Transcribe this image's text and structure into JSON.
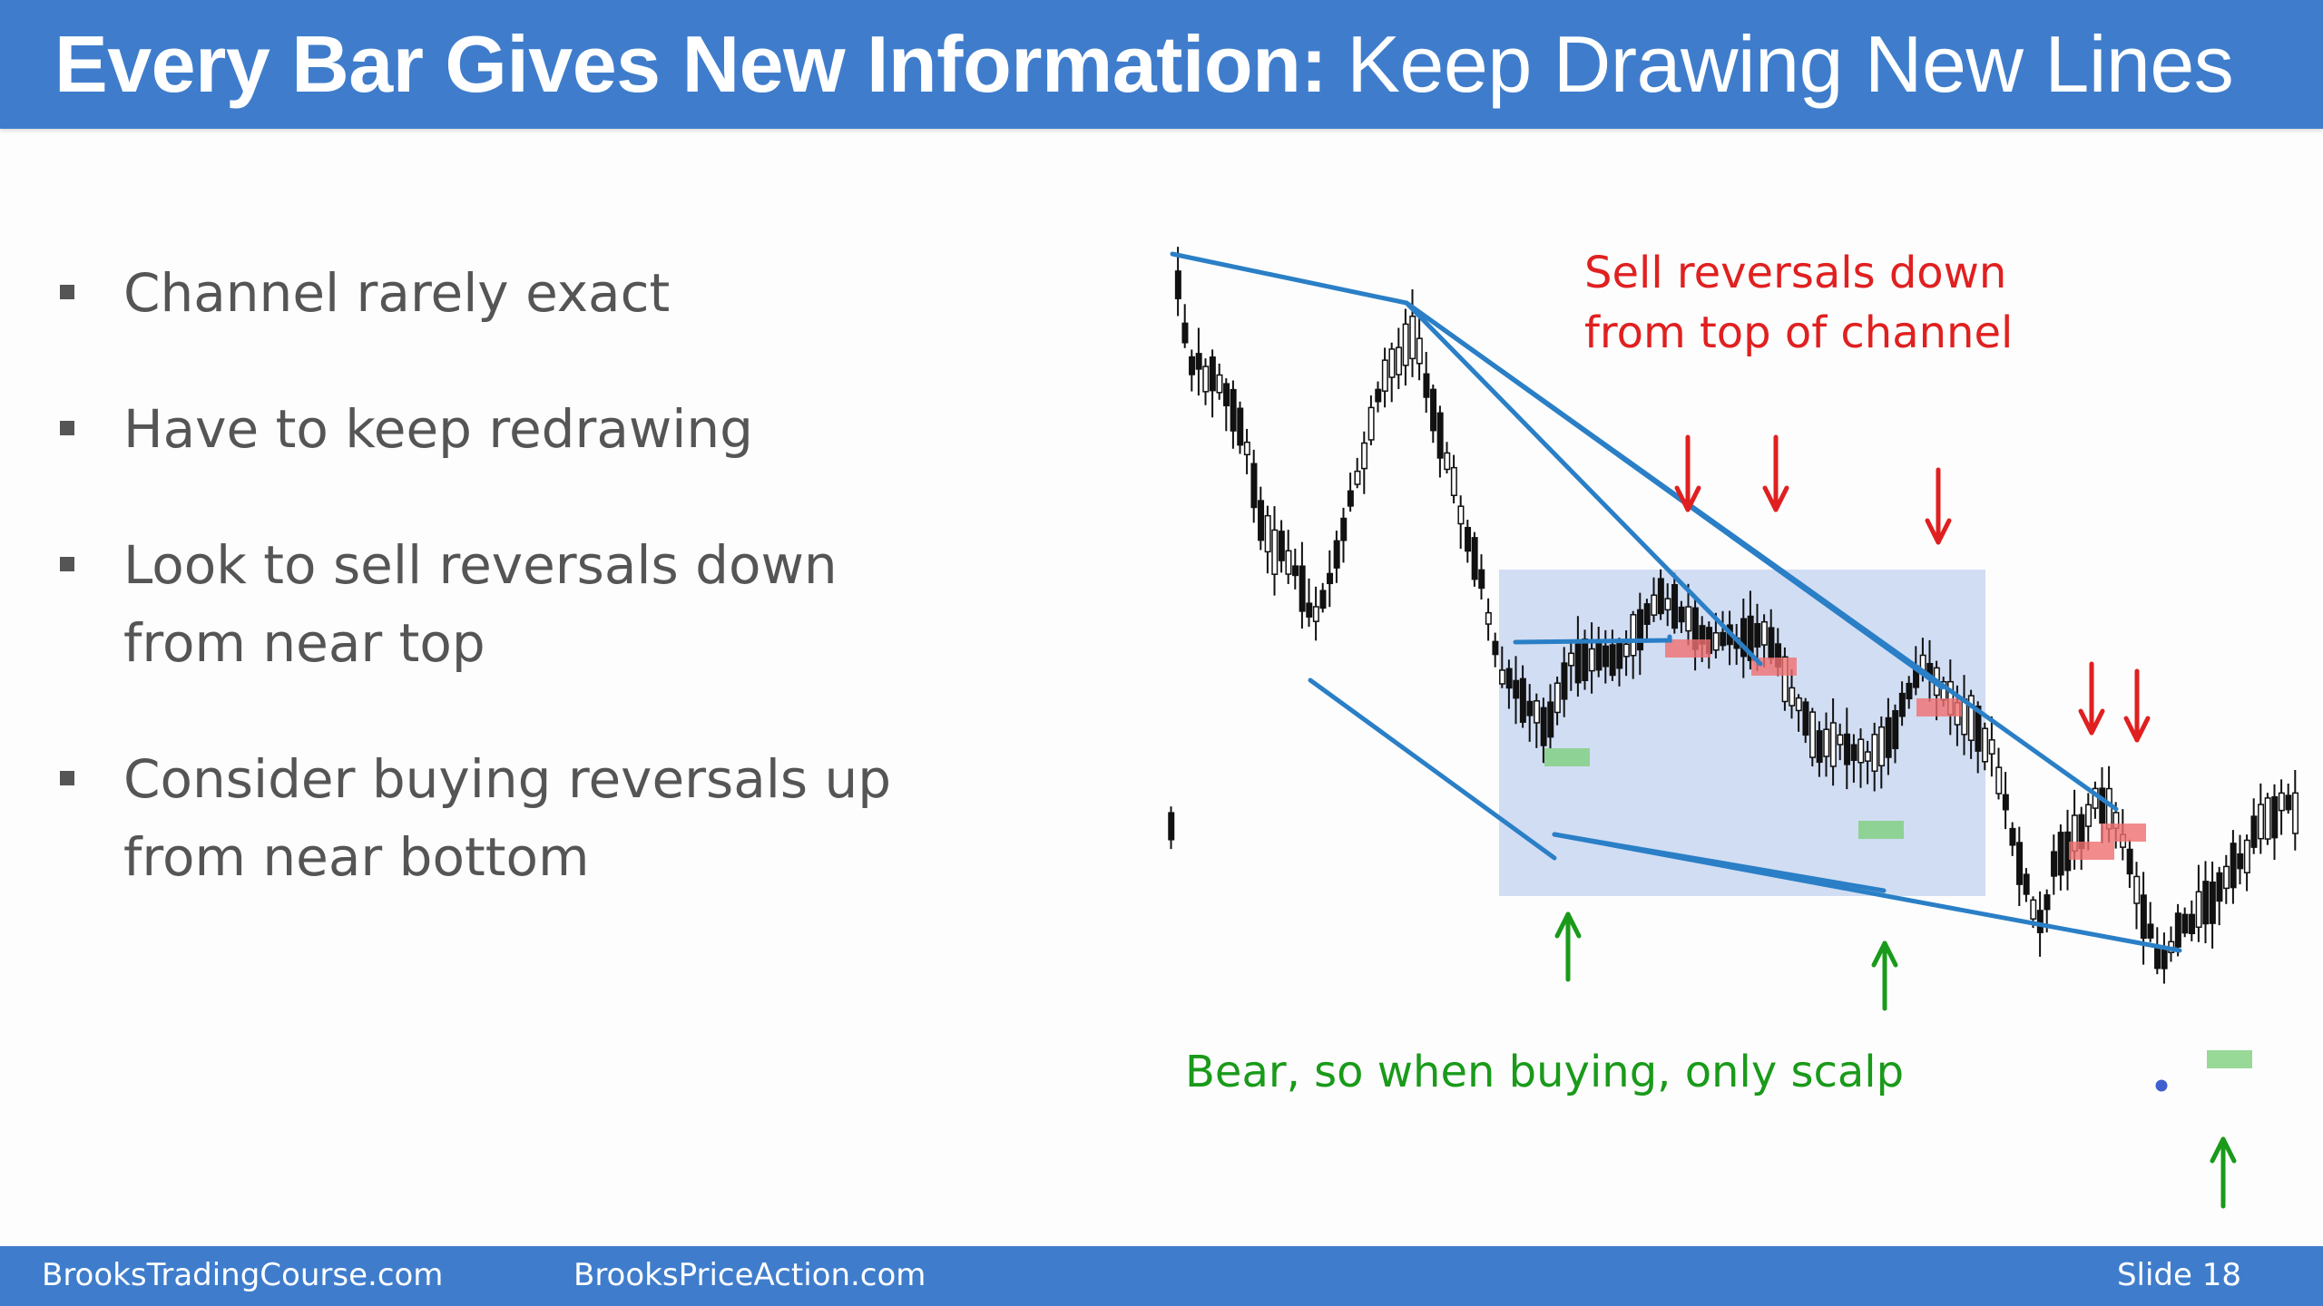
{
  "slide": {
    "title_bold": "Every Bar Gives New Information:",
    "title_rest": "Keep Drawing New Lines",
    "bullets": [
      "Channel rarely exact",
      "Have to keep redrawing",
      "Look to sell reversals down from near top",
      "Consider buying reversals up from near bottom"
    ],
    "annotations": {
      "sell_line1": "Sell reversals down",
      "sell_line2": "from top of channel",
      "bear_note": "Bear, so when buying, only scalp"
    },
    "footer": {
      "site1": "BrooksTradingCourse.com",
      "site2": "BrooksPriceAction.com",
      "slide_label": "Slide  18"
    },
    "colors": {
      "header": "#3f7dcc",
      "trendline": "#2a7fc6",
      "box": "#c9d7f1",
      "sell": "#e02020",
      "buy": "#1a9a1a"
    }
  }
}
